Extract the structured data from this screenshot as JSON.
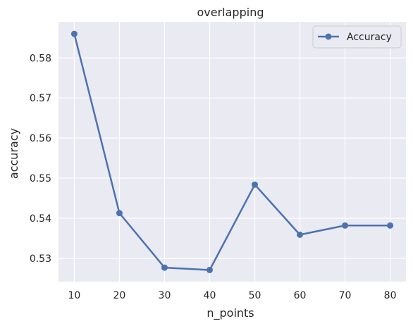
{
  "chart_data": {
    "type": "line",
    "title": "overlapping",
    "xlabel": "n_points",
    "ylabel": "accuracy",
    "x": [
      10,
      20,
      30,
      40,
      50,
      60,
      70,
      80
    ],
    "xticks": [
      "10",
      "20",
      "30",
      "40",
      "50",
      "60",
      "70",
      "80"
    ],
    "yticks": [
      "0.53",
      "0.54",
      "0.55",
      "0.56",
      "0.57",
      "0.58"
    ],
    "ytick_values": [
      0.53,
      0.54,
      0.55,
      0.56,
      0.57,
      0.58
    ],
    "xlim": [
      6.5,
      83.5
    ],
    "ylim": [
      0.5242,
      0.589
    ],
    "grid": true,
    "legend_position": "top-right",
    "series": [
      {
        "name": "Accuracy",
        "values": [
          0.586,
          0.5413,
          0.5277,
          0.5271,
          0.5484,
          0.5359,
          0.5382,
          0.5382
        ],
        "color": "#4c72b0",
        "marker": "circle"
      }
    ]
  },
  "colors": {
    "plot_background": "#eaeaf2",
    "grid": "#ffffff",
    "line": "#4c72b0"
  }
}
